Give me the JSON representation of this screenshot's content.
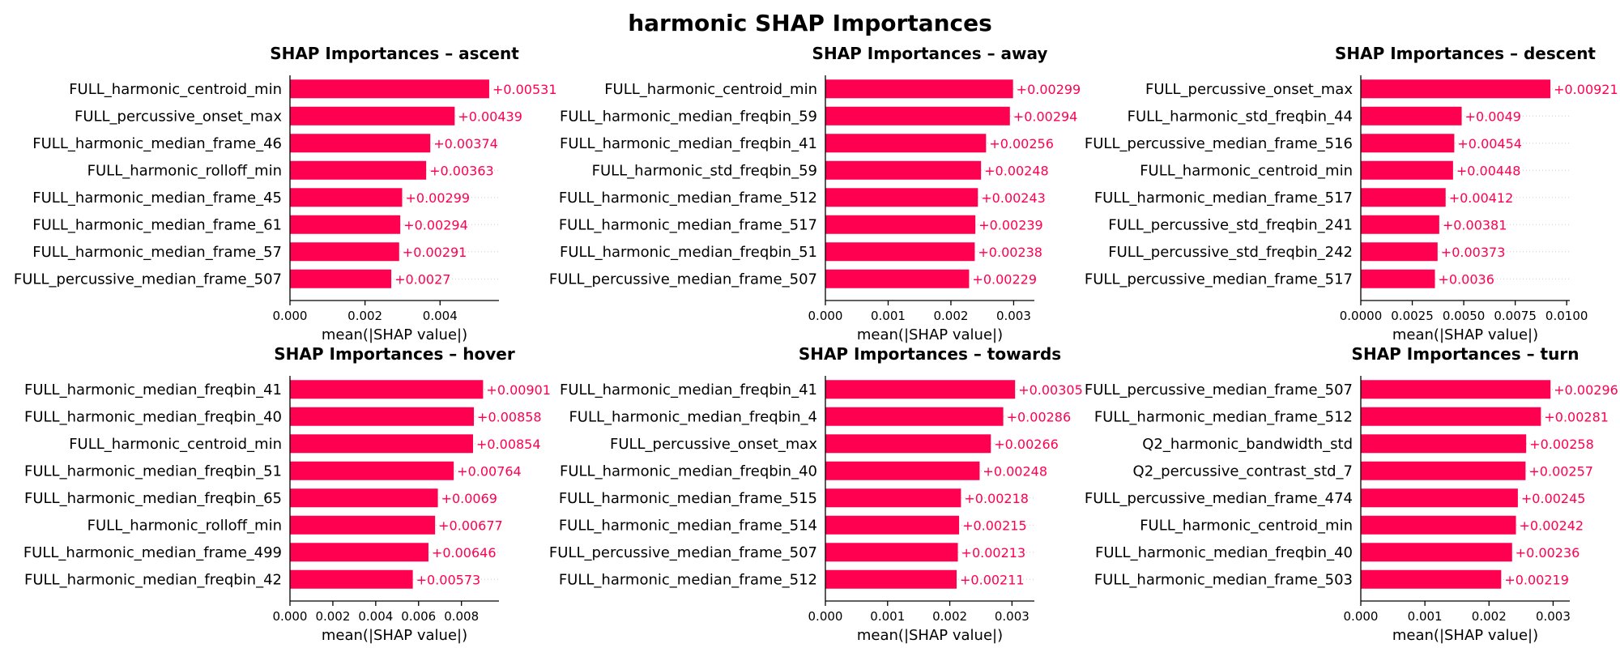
{
  "figure": {
    "title": "harmonic SHAP Importances"
  },
  "colors": {
    "bar": "#ff0051",
    "value_label": "#ff0051",
    "axis": "#000000",
    "guide": "#cccccc"
  },
  "chart_data": [
    {
      "type": "bar",
      "orientation": "horizontal",
      "title": "SHAP Importances – ascent",
      "xlabel": "mean(|SHAP value|)",
      "ylabel": "",
      "xlim": [
        0,
        0.00557
      ],
      "xticks": [
        0,
        0.002,
        0.004
      ],
      "xtick_labels": [
        "0.000",
        "0.002",
        "0.004"
      ],
      "categories": [
        "FULL_harmonic_centroid_min",
        "FULL_percussive_onset_max",
        "FULL_harmonic_median_frame_46",
        "FULL_harmonic_rolloff_min",
        "FULL_harmonic_median_frame_45",
        "FULL_harmonic_median_frame_61",
        "FULL_harmonic_median_frame_57",
        "FULL_percussive_median_frame_507"
      ],
      "values": [
        0.00531,
        0.00439,
        0.00374,
        0.00363,
        0.00299,
        0.00294,
        0.00291,
        0.0027
      ],
      "value_labels": [
        "+0.00531",
        "+0.00439",
        "+0.00374",
        "+0.00363",
        "+0.00299",
        "+0.00294",
        "+0.00291",
        "+0.0027"
      ],
      "grid": false
    },
    {
      "type": "bar",
      "orientation": "horizontal",
      "title": "SHAP Importances – away",
      "xlabel": "mean(|SHAP value|)",
      "ylabel": "",
      "xlim": [
        0,
        0.00333
      ],
      "xticks": [
        0,
        0.001,
        0.002,
        0.003
      ],
      "xtick_labels": [
        "0.000",
        "0.001",
        "0.002",
        "0.003"
      ],
      "categories": [
        "FULL_harmonic_centroid_min",
        "FULL_harmonic_median_freqbin_59",
        "FULL_harmonic_median_freqbin_41",
        "FULL_harmonic_std_freqbin_59",
        "FULL_harmonic_median_frame_512",
        "FULL_harmonic_median_frame_517",
        "FULL_harmonic_median_freqbin_51",
        "FULL_percussive_median_frame_507"
      ],
      "values": [
        0.00299,
        0.00294,
        0.00256,
        0.00248,
        0.00243,
        0.00239,
        0.00238,
        0.00229
      ],
      "value_labels": [
        "+0.00299",
        "+0.00294",
        "+0.00256",
        "+0.00248",
        "+0.00243",
        "+0.00239",
        "+0.00238",
        "+0.00229"
      ],
      "grid": false
    },
    {
      "type": "bar",
      "orientation": "horizontal",
      "title": "SHAP Importances – descent",
      "xlabel": "mean(|SHAP value|)",
      "ylabel": "",
      "xlim": [
        0,
        0.01015
      ],
      "xticks": [
        0,
        0.0025,
        0.005,
        0.0075,
        0.01
      ],
      "xtick_labels": [
        "0.0000",
        "0.0025",
        "0.0050",
        "0.0075",
        "0.0100"
      ],
      "categories": [
        "FULL_percussive_onset_max",
        "FULL_harmonic_std_freqbin_44",
        "FULL_percussive_median_frame_516",
        "FULL_harmonic_centroid_min",
        "FULL_harmonic_median_frame_517",
        "FULL_percussive_std_freqbin_241",
        "FULL_percussive_std_freqbin_242",
        "FULL_percussive_median_frame_517"
      ],
      "values": [
        0.00921,
        0.0049,
        0.00454,
        0.00448,
        0.00412,
        0.00381,
        0.00373,
        0.0036
      ],
      "value_labels": [
        "+0.00921",
        "+0.0049",
        "+0.00454",
        "+0.00448",
        "+0.00412",
        "+0.00381",
        "+0.00373",
        "+0.0036"
      ],
      "grid": false
    },
    {
      "type": "bar",
      "orientation": "horizontal",
      "title": "SHAP Importances – hover",
      "xlabel": "mean(|SHAP value|)",
      "ylabel": "",
      "xlim": [
        0,
        0.00975
      ],
      "xticks": [
        0,
        0.002,
        0.004,
        0.006,
        0.008
      ],
      "xtick_labels": [
        "0.000",
        "0.002",
        "0.004",
        "0.006",
        "0.008"
      ],
      "categories": [
        "FULL_harmonic_median_freqbin_41",
        "FULL_harmonic_median_freqbin_40",
        "FULL_harmonic_centroid_min",
        "FULL_harmonic_median_freqbin_51",
        "FULL_harmonic_median_freqbin_65",
        "FULL_harmonic_rolloff_min",
        "FULL_harmonic_median_frame_499",
        "FULL_harmonic_median_freqbin_42"
      ],
      "values": [
        0.00901,
        0.00858,
        0.00854,
        0.00764,
        0.0069,
        0.00677,
        0.00646,
        0.00573
      ],
      "value_labels": [
        "+0.00901",
        "+0.00858",
        "+0.00854",
        "+0.00764",
        "+0.0069",
        "+0.00677",
        "+0.00646",
        "+0.00573"
      ],
      "grid": false
    },
    {
      "type": "bar",
      "orientation": "horizontal",
      "title": "SHAP Importances – towards",
      "xlabel": "mean(|SHAP value|)",
      "ylabel": "",
      "xlim": [
        0,
        0.00336
      ],
      "xticks": [
        0,
        0.001,
        0.002,
        0.003
      ],
      "xtick_labels": [
        "0.000",
        "0.001",
        "0.002",
        "0.003"
      ],
      "categories": [
        "FULL_harmonic_median_freqbin_41",
        "FULL_harmonic_median_freqbin_4",
        "FULL_percussive_onset_max",
        "FULL_harmonic_median_freqbin_40",
        "FULL_harmonic_median_frame_515",
        "FULL_harmonic_median_frame_514",
        "FULL_percussive_median_frame_507",
        "FULL_harmonic_median_frame_512"
      ],
      "values": [
        0.00305,
        0.00286,
        0.00266,
        0.00248,
        0.00218,
        0.00215,
        0.00213,
        0.00211
      ],
      "value_labels": [
        "+0.00305",
        "+0.00286",
        "+0.00266",
        "+0.00248",
        "+0.00218",
        "+0.00215",
        "+0.00213",
        "+0.00211"
      ],
      "grid": false
    },
    {
      "type": "bar",
      "orientation": "horizontal",
      "title": "SHAP Importances – turn",
      "xlabel": "mean(|SHAP value|)",
      "ylabel": "",
      "xlim": [
        0,
        0.00326
      ],
      "xticks": [
        0,
        0.001,
        0.002,
        0.003
      ],
      "xtick_labels": [
        "0.000",
        "0.001",
        "0.002",
        "0.003"
      ],
      "categories": [
        "FULL_percussive_median_frame_507",
        "FULL_harmonic_median_frame_512",
        "Q2_harmonic_bandwidth_std",
        "Q2_percussive_contrast_std_7",
        "FULL_percussive_median_frame_474",
        "FULL_harmonic_centroid_min",
        "FULL_harmonic_median_freqbin_40",
        "FULL_harmonic_median_frame_503"
      ],
      "values": [
        0.00296,
        0.00281,
        0.00258,
        0.00257,
        0.00245,
        0.00242,
        0.00236,
        0.00219
      ],
      "value_labels": [
        "+0.00296",
        "+0.00281",
        "+0.00258",
        "+0.00257",
        "+0.00245",
        "+0.00242",
        "+0.00236",
        "+0.00219"
      ],
      "grid": false
    }
  ]
}
